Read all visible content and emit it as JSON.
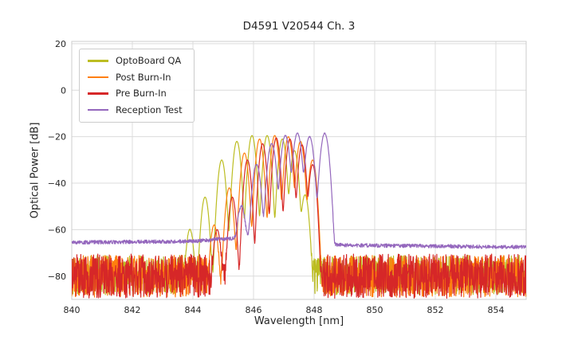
{
  "chart_data": {
    "type": "line",
    "title": "D4591 V20544 Ch. 3",
    "xlabel": "Wavelength [nm]",
    "ylabel": "Optical Power [dB]",
    "xlim": [
      840,
      855
    ],
    "ylim": [
      -90,
      21
    ],
    "xticks": [
      840,
      842,
      844,
      846,
      848,
      850,
      852,
      854
    ],
    "yticks": [
      20,
      0,
      -20,
      -40,
      -60,
      -80
    ],
    "grid": true,
    "grid_color": "#dcdcdc",
    "border_color": "#cccccc",
    "tick_label_color": "#262626",
    "legend_position": "upper left",
    "sample_step_nm": 0.01,
    "description": "Optical spectra of VCSEL channel 3 at four test stages: multimode emission comb between ~844.5 and ~848.5 nm peaking near -19 dB, noise floor near -80 dB for OptoBoard QA / Post Burn-In / Pre Burn-In, and a ~-66 dB baseline for Reception Test whose spectrum is shifted ~0.5 nm to longer wavelengths.",
    "series": [
      {
        "name": "OptoBoard QA",
        "color": "#bcbd22",
        "seed": 101,
        "mode_width_nm": 0.085,
        "noise_floor": {
          "center": -79.5,
          "amplitude": 8.5
        },
        "modes": [
          [
            843.9,
            -60
          ],
          [
            844.4,
            -46
          ],
          [
            844.95,
            -30
          ],
          [
            845.45,
            -22
          ],
          [
            845.95,
            -19.5
          ],
          [
            846.45,
            -19.5
          ],
          [
            846.95,
            -21
          ],
          [
            847.35,
            -26
          ],
          [
            847.7,
            -45
          ]
        ]
      },
      {
        "name": "Post Burn-In",
        "color": "#ff7f0e",
        "seed": 202,
        "mode_width_nm": 0.085,
        "noise_floor": {
          "center": -80,
          "amplitude": 9
        },
        "modes": [
          [
            844.7,
            -58
          ],
          [
            845.2,
            -42
          ],
          [
            845.7,
            -27
          ],
          [
            846.2,
            -21
          ],
          [
            846.7,
            -19.5
          ],
          [
            847.15,
            -20
          ],
          [
            847.55,
            -22
          ],
          [
            847.95,
            -30
          ]
        ]
      },
      {
        "name": "Pre Burn-In",
        "color": "#d62728",
        "seed": 303,
        "mode_width_nm": 0.08,
        "noise_floor": {
          "center": -80,
          "amplitude": 9.5
        },
        "modes": [
          [
            844.8,
            -60
          ],
          [
            845.3,
            -46
          ],
          [
            845.8,
            -30
          ],
          [
            846.3,
            -23
          ],
          [
            846.75,
            -20.5
          ],
          [
            847.2,
            -21
          ],
          [
            847.6,
            -23.5
          ],
          [
            847.95,
            -32
          ]
        ]
      },
      {
        "name": "Reception Test",
        "color": "#9467bd",
        "seed": 404,
        "mode_width_nm": 0.095,
        "jitter_db": 0.8,
        "baseline": [
          [
            840,
            -65.5
          ],
          [
            844,
            -65
          ],
          [
            845.5,
            -63.5
          ],
          [
            846.5,
            -62
          ],
          [
            848.4,
            -66.5
          ],
          [
            850,
            -66.8
          ],
          [
            855,
            -67.5
          ]
        ],
        "modes": [
          [
            845.6,
            -50
          ],
          [
            846.1,
            -32
          ],
          [
            846.6,
            -23
          ],
          [
            847.05,
            -19.5
          ],
          [
            847.45,
            -18.5
          ],
          [
            847.85,
            -20
          ],
          [
            848.35,
            -18.5
          ]
        ]
      }
    ]
  }
}
